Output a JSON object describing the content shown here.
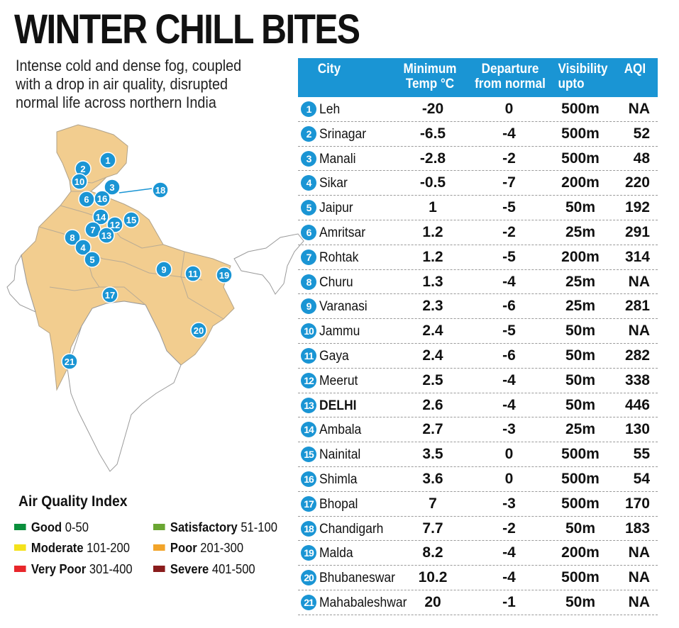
{
  "title": "WINTER CHILL BITES",
  "subtitle": "Intense cold and dense fog, coupled with a drop in air quality, disrupted normal life across northern India",
  "table": {
    "headers": {
      "city": "City",
      "temp_1": "Minimum",
      "temp_2": "Temp °C",
      "dep_1": "Departure",
      "dep_2": "from normal",
      "vis_1": "Visibility",
      "vis_2": "upto",
      "aqi": "AQI"
    },
    "rows": [
      {
        "num": "1",
        "city": "Leh",
        "temp": "-20",
        "dep": "0",
        "vis": "500m",
        "aqi": "NA"
      },
      {
        "num": "2",
        "city": "Srinagar",
        "temp": "-6.5",
        "dep": "-4",
        "vis": "500m",
        "aqi": "52"
      },
      {
        "num": "3",
        "city": "Manali",
        "temp": "-2.8",
        "dep": "-2",
        "vis": "500m",
        "aqi": "48"
      },
      {
        "num": "4",
        "city": "Sikar",
        "temp": "-0.5",
        "dep": "-7",
        "vis": "200m",
        "aqi": "220"
      },
      {
        "num": "5",
        "city": "Jaipur",
        "temp": "1",
        "dep": "-5",
        "vis": "50m",
        "aqi": "192"
      },
      {
        "num": "6",
        "city": "Amritsar",
        "temp": "1.2",
        "dep": "-2",
        "vis": "25m",
        "aqi": "291"
      },
      {
        "num": "7",
        "city": "Rohtak",
        "temp": "1.2",
        "dep": "-5",
        "vis": "200m",
        "aqi": "314"
      },
      {
        "num": "8",
        "city": "Churu",
        "temp": "1.3",
        "dep": "-4",
        "vis": "25m",
        "aqi": "NA"
      },
      {
        "num": "9",
        "city": "Varanasi",
        "temp": "2.3",
        "dep": "-6",
        "vis": "25m",
        "aqi": "281"
      },
      {
        "num": "10",
        "city": "Jammu",
        "temp": "2.4",
        "dep": "-5",
        "vis": "50m",
        "aqi": "NA"
      },
      {
        "num": "11",
        "city": "Gaya",
        "temp": "2.4",
        "dep": "-6",
        "vis": "50m",
        "aqi": "282"
      },
      {
        "num": "12",
        "city": "Meerut",
        "temp": "2.5",
        "dep": "-4",
        "vis": "50m",
        "aqi": "338"
      },
      {
        "num": "13",
        "city": "DELHI",
        "temp": "2.6",
        "dep": "-4",
        "vis": "50m",
        "aqi": "446"
      },
      {
        "num": "14",
        "city": "Ambala",
        "temp": "2.7",
        "dep": "-3",
        "vis": "25m",
        "aqi": "130"
      },
      {
        "num": "15",
        "city": "Nainital",
        "temp": "3.5",
        "dep": "0",
        "vis": "500m",
        "aqi": "55"
      },
      {
        "num": "16",
        "city": "Shimla",
        "temp": "3.6",
        "dep": "0",
        "vis": "500m",
        "aqi": "54"
      },
      {
        "num": "17",
        "city": "Bhopal",
        "temp": "7",
        "dep": "-3",
        "vis": "500m",
        "aqi": "170"
      },
      {
        "num": "18",
        "city": "Chandigarh",
        "temp": "7.7",
        "dep": "-2",
        "vis": "50m",
        "aqi": "183"
      },
      {
        "num": "19",
        "city": "Malda",
        "temp": "8.2",
        "dep": "-4",
        "vis": "200m",
        "aqi": "NA"
      },
      {
        "num": "20",
        "city": "Bhubaneswar",
        "temp": "10.2",
        "dep": "-4",
        "vis": "500m",
        "aqi": "NA"
      },
      {
        "num": "21",
        "city": "Mahabaleshwar",
        "temp": "20",
        "dep": "-1",
        "vis": "50m",
        "aqi": "NA"
      }
    ]
  },
  "legend": {
    "title": "Air Quality Index",
    "items": [
      {
        "label": "Good",
        "range": "0-50",
        "color": "#0a8f3c"
      },
      {
        "label": "Satisfactory",
        "range": "51-100",
        "color": "#6aa632"
      },
      {
        "label": "Moderate",
        "range": "101-200",
        "color": "#f4e21b"
      },
      {
        "label": "Poor",
        "range": "201-300",
        "color": "#f2a42a"
      },
      {
        "label": "Very Poor",
        "range": "301-400",
        "color": "#e8262b"
      },
      {
        "label": "Severe",
        "range": "401-500",
        "color": "#8a1c1c"
      }
    ]
  },
  "map": {
    "markers": [
      "1",
      "2",
      "10",
      "3",
      "16",
      "6",
      "18",
      "14",
      "15",
      "12",
      "7",
      "13",
      "8",
      "4",
      "5",
      "9",
      "11",
      "19",
      "17",
      "20",
      "21"
    ],
    "region_color": "#f2cd8f",
    "marker_color": "#1a95d4"
  }
}
